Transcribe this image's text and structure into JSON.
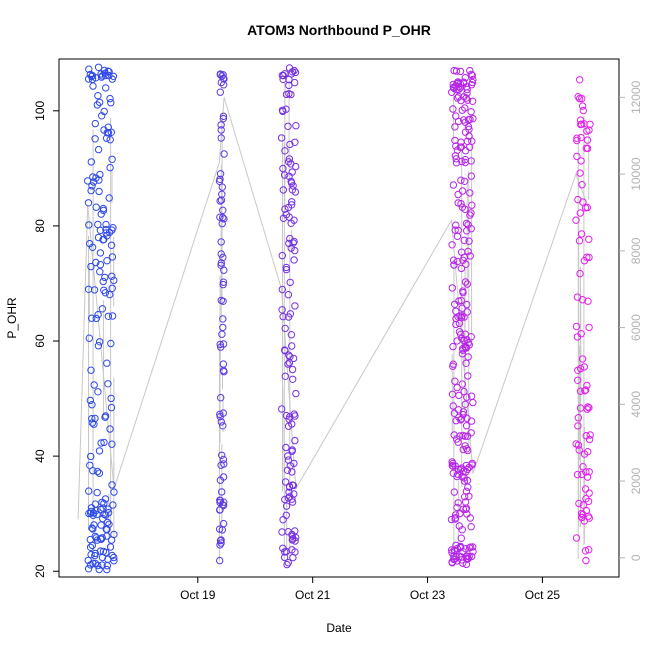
{
  "chart_data": {
    "type": "scatter",
    "title": "ATOM3 Northbound P_OHR",
    "xlabel": "Date",
    "ylabel": "P_OHR",
    "xlim": [
      "2020-10-16T14:00",
      "2020-10-26T08:00"
    ],
    "ylim": [
      19,
      109
    ],
    "y2lim": [
      -500,
      13000
    ],
    "x_tick_labels": [
      {
        "date": "2020-10-19T00:00",
        "label": "Oct 19"
      },
      {
        "date": "2020-10-21T00:00",
        "label": "Oct 21"
      },
      {
        "date": "2020-10-23T00:00",
        "label": "Oct 23"
      },
      {
        "date": "2020-10-25T00:00",
        "label": "Oct 25"
      }
    ],
    "y_ticks": [
      20,
      40,
      60,
      80,
      100
    ],
    "y2_ticks": [
      0,
      2000,
      4000,
      6000,
      8000,
      10000,
      12000
    ],
    "grid": false,
    "legend": "none",
    "marker": "open-circle",
    "color_scale": [
      "#1f4fe8",
      "#8a2be2",
      "#f01ff0"
    ],
    "secondary_series_color": "#c8c8c8",
    "groups": [
      {
        "start": "2020-10-17T02:00",
        "end": "2020-10-17T13:00",
        "points": 190,
        "cluster_low": [
          21,
          23,
          26,
          28,
          30,
          31
        ],
        "cluster_high": [
          106,
          107
        ]
      },
      {
        "start": "2020-10-19T09:00",
        "end": "2020-10-19T11:00",
        "points": 75,
        "cluster_low": [
          25,
          28,
          30,
          32,
          38
        ],
        "cluster_high": [
          105,
          106
        ]
      },
      {
        "start": "2020-10-20T11:00",
        "end": "2020-10-20T17:00",
        "points": 130,
        "cluster_low": [
          23,
          26,
          29,
          32,
          35
        ],
        "cluster_high": [
          105,
          106,
          107
        ]
      },
      {
        "start": "2020-10-23T10:00",
        "end": "2020-10-23T19:00",
        "points": 260,
        "cluster_low": [
          22,
          24,
          37,
          38,
          43,
          47
        ],
        "cluster_high": [
          100,
          102,
          104,
          105
        ]
      },
      {
        "start": "2020-10-25T14:00",
        "end": "2020-10-25T20:00",
        "points": 90,
        "cluster_low": [
          30,
          32,
          37
        ],
        "cluster_high": [
          97,
          98,
          102
        ]
      }
    ],
    "secondary_series": [
      {
        "x": "2020-10-16T22:00",
        "y": 1000
      },
      {
        "x": "2020-10-17T02:00",
        "y": 9200
      },
      {
        "x": "2020-10-17T13:00",
        "y": 1800
      },
      {
        "x": "2020-10-19T09:00",
        "y": 10300
      },
      {
        "x": "2020-10-19T11:00",
        "y": 12000
      },
      {
        "x": "2020-10-20T11:00",
        "y": 7000
      },
      {
        "x": "2020-10-20T17:00",
        "y": 1800
      },
      {
        "x": "2020-10-23T10:00",
        "y": 8800
      },
      {
        "x": "2020-10-23T19:00",
        "y": 2200
      },
      {
        "x": "2020-10-25T14:00",
        "y": 10000
      },
      {
        "x": "2020-10-25T20:00",
        "y": 9000
      }
    ]
  }
}
